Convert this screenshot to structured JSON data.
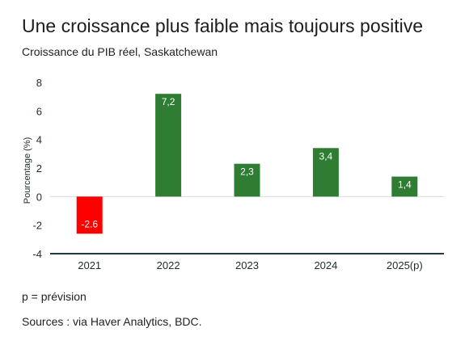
{
  "header": {
    "title": "Une croissance plus faible mais toujours positive",
    "subtitle": "Croissance du PIB réel, Saskatchewan"
  },
  "footer": {
    "note": "p = prévision",
    "source": "Sources : via Haver Analytics, BDC."
  },
  "colors": {
    "positive": "#2e7d32",
    "negative": "#ff0000",
    "axis": "#1f3a44",
    "zero_line": "#d9d9d9"
  },
  "chart_data": {
    "type": "bar",
    "title": "Une croissance plus faible mais toujours positive",
    "subtitle": "Croissance du PIB réel, Saskatchewan",
    "xlabel": "",
    "ylabel": "Pourcentage (%)",
    "ylim": [
      -4,
      8
    ],
    "yticks": [
      "-4",
      "-2",
      "0",
      "2",
      "4",
      "6",
      "8"
    ],
    "grid": false,
    "categories": [
      "2021",
      "2022",
      "2023",
      "2024",
      "2025(p)"
    ],
    "values": [
      -2.6,
      7.2,
      2.3,
      3.4,
      1.4
    ],
    "data_labels": [
      "-2.6",
      "7,2",
      "2,3",
      "3,4",
      "1,4"
    ]
  }
}
